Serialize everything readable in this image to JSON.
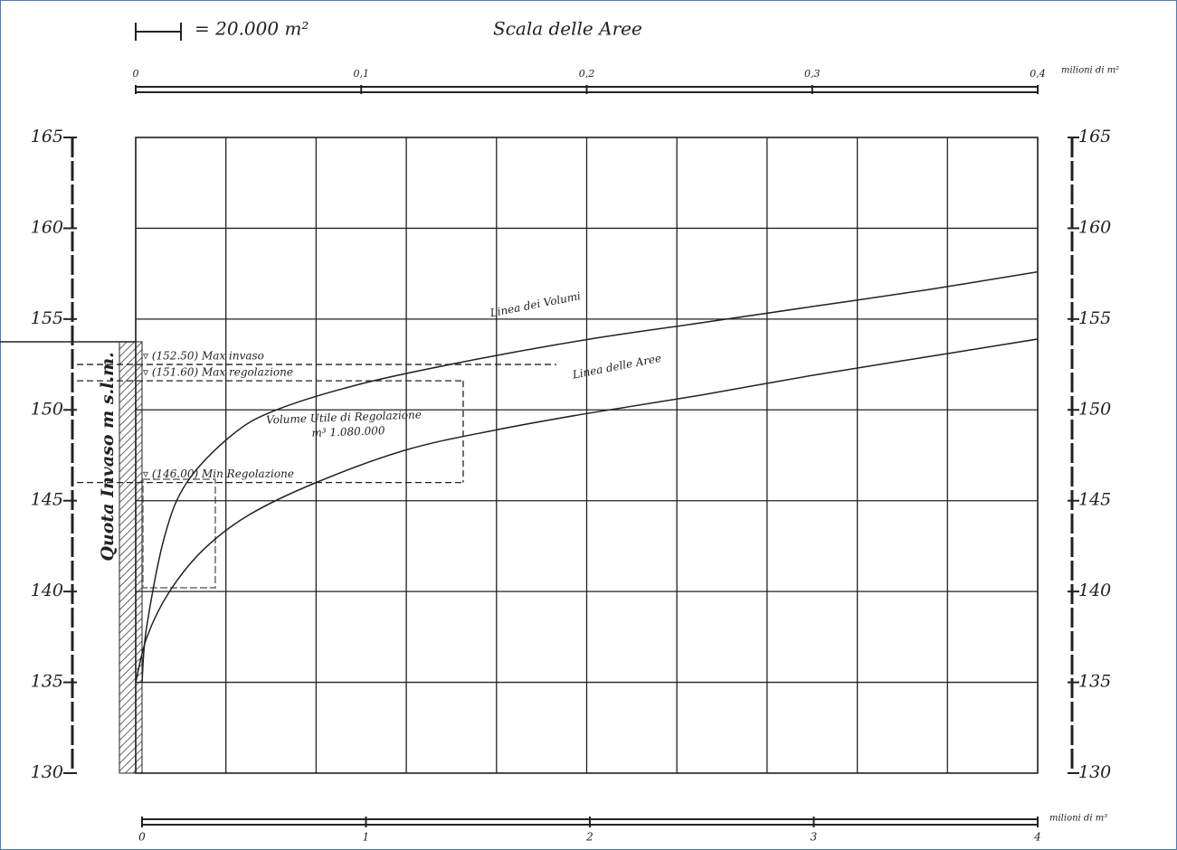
{
  "chart_data": {
    "type": "line",
    "title": "Scala delle Aree",
    "scale_note": "= 20.000 m²",
    "ylabel": "Quota Invaso m s.l.m.",
    "x2label": "milioni di m²",
    "xlabel": "milioni di m³",
    "ylim": [
      130,
      165
    ],
    "yticks": [
      130,
      135,
      140,
      145,
      150,
      155,
      160,
      165
    ],
    "xlim": [
      0,
      4
    ],
    "xticks": [
      0,
      1,
      2,
      3,
      4
    ],
    "x2lim": [
      0,
      0.4
    ],
    "x2ticks": [
      0,
      {
        "value": 0.1,
        "label": "0,1"
      },
      {
        "value": 0.2,
        "label": "0,2"
      },
      {
        "value": 0.3,
        "label": "0,3"
      },
      {
        "value": 0.4,
        "label": "0,4"
      }
    ],
    "x2grid": [
      0,
      0.04,
      0.08,
      0.12,
      0.16,
      0.2,
      0.24,
      0.28,
      0.32,
      0.36,
      0.4
    ],
    "grid": true,
    "series": [
      {
        "name": "Linea dei Volumi",
        "color": "#222222",
        "axis": "x",
        "x": [
          0,
          0.02,
          0.1,
          0.2,
          0.4,
          0.6,
          1,
          1.5,
          2,
          2.5,
          3,
          3.5,
          4
        ],
        "values": [
          135,
          138,
          143,
          146,
          148.6,
          150,
          151.5,
          152.8,
          153.9,
          154.8,
          155.7,
          156.6,
          157.6
        ]
      },
      {
        "name": "Linea delle Aree",
        "color": "#222222",
        "axis": "x2",
        "x": [
          0,
          0.005,
          0.015,
          0.03,
          0.05,
          0.08,
          0.12,
          0.16,
          0.2,
          0.25,
          0.3,
          0.35,
          0.4
        ],
        "values": [
          135,
          137.5,
          140,
          142.3,
          144.2,
          146,
          147.8,
          148.9,
          149.8,
          150.8,
          151.9,
          152.9,
          153.9
        ]
      }
    ],
    "levels": [
      {
        "value": 152.5,
        "label": "▿ (152.50) Max invaso"
      },
      {
        "value": 151.6,
        "label": "▿ (151.60) Max regolazione"
      },
      {
        "value": 146,
        "label": "▿ (146.00) Min Regolazione"
      }
    ],
    "annotations": [
      "Volume Utile di Regolazione",
      "m³ 1.080.000"
    ]
  }
}
